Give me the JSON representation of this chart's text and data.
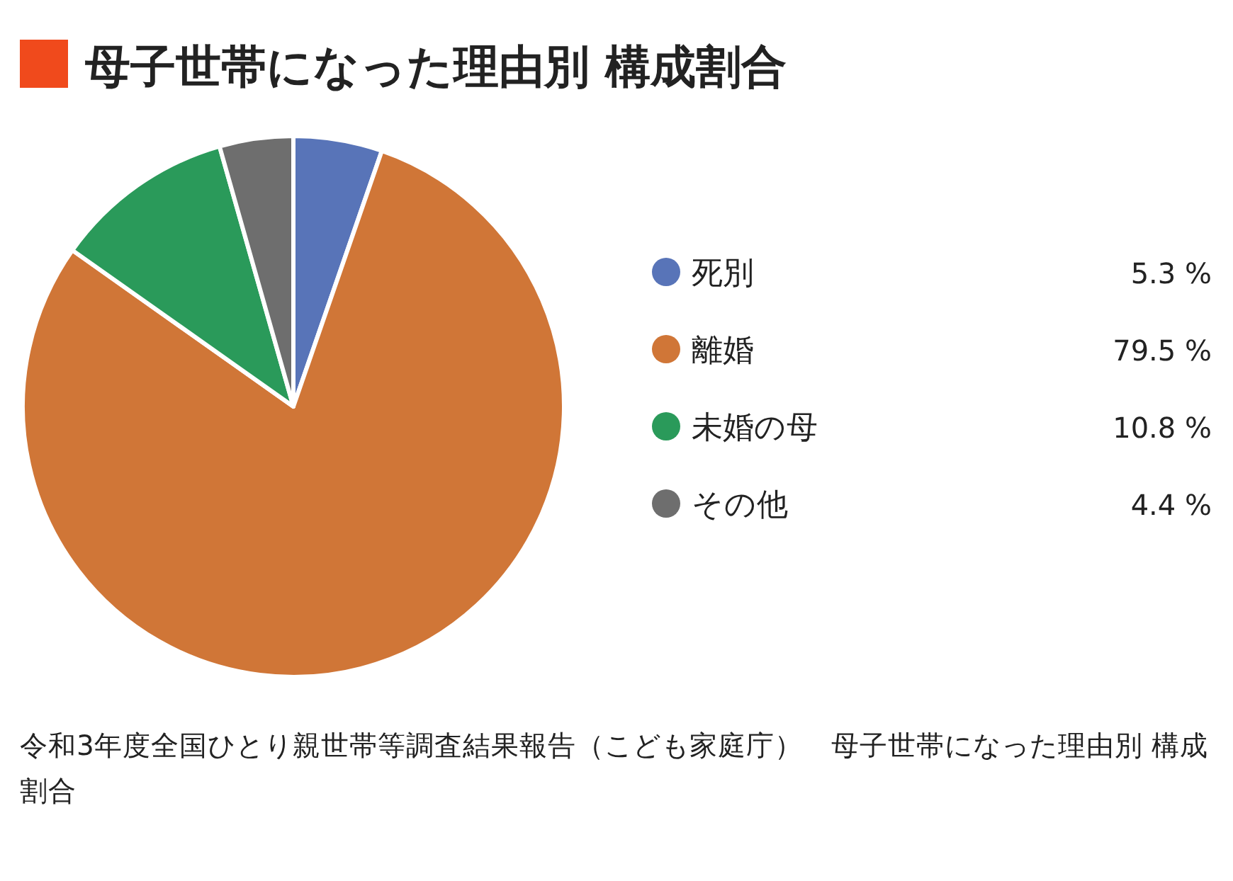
{
  "chart_data": {
    "type": "pie",
    "title": "母子世帯になった理由別 構成割合",
    "categories": [
      "死別",
      "離婚",
      "未婚の母",
      "その他"
    ],
    "values": [
      5.3,
      79.5,
      10.8,
      4.4
    ],
    "colors": [
      "#5874b8",
      "#d07637",
      "#2a9a5a",
      "#6e6e6e"
    ],
    "value_labels": [
      "5.3 %",
      "79.5 %",
      "10.8 %",
      "4.4 %"
    ],
    "legend": "right",
    "annotations": [
      "令和3年度全国ひとり親世帯等調査結果報告（こども家庭庁）　母子世帯になった理由別 構成割合"
    ]
  }
}
